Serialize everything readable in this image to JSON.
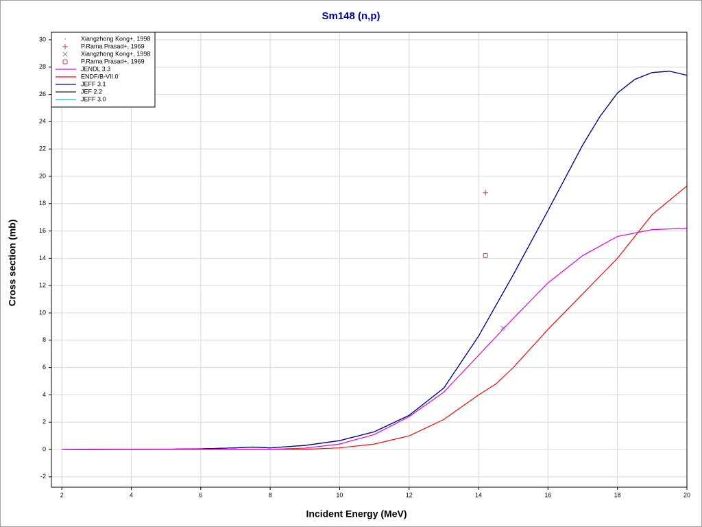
{
  "chart_data": {
    "type": "line",
    "title": "Sm148 (n,p)",
    "x_label": "Incident Energy (MeV)",
    "y_label": "Cross section (mb)",
    "xlim": [
      1.7,
      20
    ],
    "ylim": [
      -2.76,
      30.55
    ],
    "xticks": [
      2,
      4,
      6,
      8,
      10,
      12,
      14,
      16,
      18,
      20
    ],
    "yticks": [
      -2,
      0,
      2,
      4,
      6,
      8,
      10,
      12,
      14,
      16,
      18,
      20,
      22,
      24,
      26,
      28,
      30
    ],
    "grid": true,
    "legend": "top-left",
    "points": [
      {
        "name": "Xiangzhong Kong+, 1998",
        "color": "#a0a0c0",
        "marker": "dot",
        "x": [
          14.7
        ],
        "values": [
          8.9
        ]
      },
      {
        "name": "P.Rama Prasad+, 1969",
        "color": "#c04040",
        "marker": "plus",
        "x": [
          14.2
        ],
        "values": [
          18.8
        ]
      },
      {
        "name": "Xiangzhong Kong+, 1998",
        "color": "#8080c0",
        "marker": "cross",
        "x": [
          14.7
        ],
        "values": [
          8.9
        ]
      },
      {
        "name": "P.Rama Prasad+, 1969",
        "color": "#c04040",
        "marker": "square",
        "x": [
          14.2
        ],
        "values": [
          14.2
        ]
      }
    ],
    "series": [
      {
        "name": "JENDL 3.3",
        "color": "#e000e0",
        "x": [
          2,
          8,
          9,
          10,
          11,
          12,
          13,
          14,
          15,
          16,
          17,
          18,
          19,
          20
        ],
        "values": [
          0,
          0.02,
          0.1,
          0.4,
          1.1,
          2.4,
          4.2,
          6.9,
          9.6,
          12.2,
          14.2,
          15.6,
          16.1,
          16.2
        ]
      },
      {
        "name": "ENDF/B-VII.0",
        "color": "#ff0000",
        "x": [
          2,
          9,
          10,
          11,
          12,
          13,
          14,
          14.5,
          15,
          16,
          17,
          18,
          19,
          20
        ],
        "values": [
          0,
          0.02,
          0.12,
          0.4,
          1.0,
          2.2,
          4.0,
          4.8,
          6.0,
          8.8,
          11.4,
          14.0,
          17.2,
          19.3
        ]
      },
      {
        "name": "JEFF 3.1",
        "color": "#0000a0",
        "x": [
          2,
          5,
          6,
          7,
          7.5,
          8,
          9,
          10,
          11,
          12,
          13,
          14,
          15,
          16,
          17,
          17.5,
          18,
          18.5,
          19,
          19.5,
          20
        ],
        "values": [
          0,
          0.02,
          0.05,
          0.12,
          0.18,
          0.12,
          0.3,
          0.65,
          1.3,
          2.5,
          4.5,
          8.3,
          12.8,
          17.5,
          22.3,
          24.4,
          26.1,
          27.1,
          27.6,
          27.7,
          27.4
        ]
      },
      {
        "name": "JEF 2.2",
        "color": "#202040",
        "x": [
          2,
          5,
          6,
          7,
          7.5,
          8,
          9,
          10,
          11,
          12,
          13,
          14,
          15,
          16,
          17,
          17.5,
          18,
          18.5,
          19,
          19.5,
          20
        ],
        "values": [
          0,
          0.02,
          0.05,
          0.12,
          0.18,
          0.12,
          0.3,
          0.65,
          1.3,
          2.5,
          4.5,
          8.3,
          12.8,
          17.5,
          22.3,
          24.4,
          26.1,
          27.1,
          27.6,
          27.7,
          27.4
        ]
      },
      {
        "name": "JEFF 3.0",
        "color": "#00c0c0",
        "x": [
          2,
          5,
          6,
          7,
          7.5,
          8,
          9,
          10,
          11,
          12,
          13,
          14,
          15,
          16,
          17,
          17.5,
          18,
          18.5,
          19,
          19.5,
          20
        ],
        "values": [
          0,
          0.02,
          0.05,
          0.12,
          0.18,
          0.12,
          0.3,
          0.65,
          1.3,
          2.5,
          4.5,
          8.3,
          12.8,
          17.5,
          22.3,
          24.4,
          26.1,
          27.1,
          27.6,
          27.7,
          27.4
        ]
      }
    ]
  }
}
